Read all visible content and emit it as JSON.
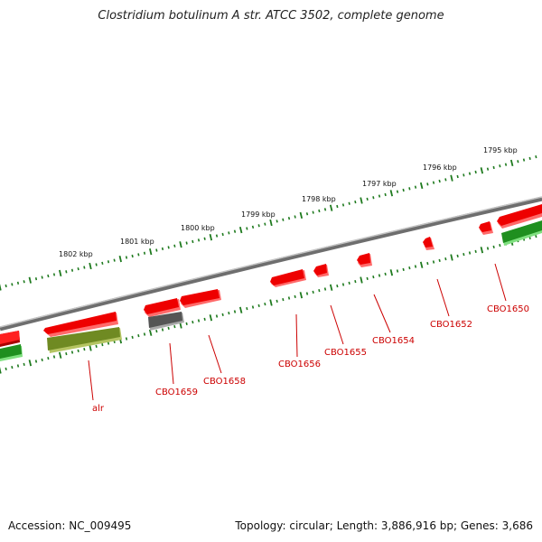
{
  "title": "Clostridium botulinum A str. ATCC 3502, complete genome",
  "accession": "Accession: NC_009495",
  "genome_info": "Topology: circular; Length: 3,886,916 bp; Genes: 3,686",
  "colors": {
    "forward_gene": "#e00000",
    "reverse_gene": "#2f9e2f",
    "rrna_gene": "#7f9a2a",
    "pseudo_gene": "#606060",
    "backbone": "#888888",
    "tick": "#1e7a1e",
    "label": "#cc0000"
  },
  "ruler": {
    "labels": [
      "1802 kbp",
      "1801 kbp",
      "1800 kbp",
      "1799 kbp",
      "1798 kbp",
      "1797 kbp",
      "1796 kbp",
      "1795 kbp"
    ]
  },
  "gene_labels": {
    "alr": "alr",
    "cbo1659": "CBO1659",
    "cbo1658": "CBO1658",
    "cbo1656": "CBO1656",
    "cbo1655": "CBO1655",
    "cbo1654": "CBO1654",
    "cbo1652": "CBO1652",
    "cbo1650": "CBO1650"
  }
}
